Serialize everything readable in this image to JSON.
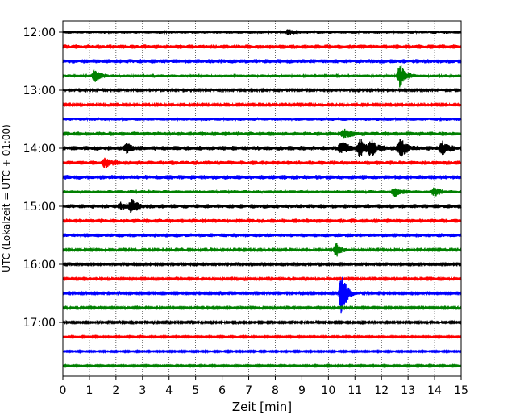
{
  "chart_data": {
    "type": "line",
    "title": "",
    "xlabel": "Zeit  [min]",
    "ylabel": "UTC (Lokalzeit = UTC + 01:00)",
    "xlim": [
      0,
      15
    ],
    "x_ticks": [
      "0",
      "1",
      "2",
      "3",
      "4",
      "5",
      "6",
      "7",
      "8",
      "9",
      "10",
      "11",
      "12",
      "13",
      "14",
      "15"
    ],
    "y_ticks": [
      "12:00",
      "13:00",
      "14:00",
      "15:00",
      "16:00",
      "17:00"
    ],
    "grid": "vertical dotted",
    "trace_colors": [
      "#000000",
      "#ff0000",
      "#0000ff",
      "#008000"
    ],
    "traces": [
      {
        "start": "12:00",
        "color": "#000000",
        "amplitude": 0.22,
        "events": [
          [
            8.5,
            0.35
          ]
        ]
      },
      {
        "start": "12:15",
        "color": "#ff0000",
        "amplitude": 0.3,
        "events": []
      },
      {
        "start": "12:30",
        "color": "#0000ff",
        "amplitude": 0.3,
        "events": []
      },
      {
        "start": "12:45",
        "color": "#008000",
        "amplitude": 0.18,
        "events": [
          [
            1.2,
            1.0
          ],
          [
            12.7,
            1.6
          ]
        ]
      },
      {
        "start": "13:00",
        "color": "#000000",
        "amplitude": 0.12,
        "events": []
      },
      {
        "start": "13:15",
        "color": "#ff0000",
        "amplitude": 0.12,
        "events": []
      },
      {
        "start": "13:30",
        "color": "#0000ff",
        "amplitude": 0.22,
        "events": []
      },
      {
        "start": "13:45",
        "color": "#008000",
        "amplitude": 0.3,
        "events": [
          [
            10.6,
            0.6
          ]
        ]
      },
      {
        "start": "14:00",
        "color": "#000000",
        "amplitude": 0.32,
        "events": [
          [
            2.4,
            0.6
          ],
          [
            10.5,
            0.9
          ],
          [
            11.2,
            1.2
          ],
          [
            11.6,
            1.0
          ],
          [
            12.7,
            1.4
          ],
          [
            14.3,
            0.8
          ]
        ]
      },
      {
        "start": "14:15",
        "color": "#ff0000",
        "amplitude": 0.3,
        "events": [
          [
            1.6,
            0.6
          ]
        ]
      },
      {
        "start": "14:30",
        "color": "#0000ff",
        "amplitude": 0.32,
        "events": []
      },
      {
        "start": "14:45",
        "color": "#008000",
        "amplitude": 0.22,
        "events": [
          [
            12.5,
            0.6
          ],
          [
            14.0,
            0.6
          ]
        ]
      },
      {
        "start": "15:00",
        "color": "#000000",
        "amplitude": 0.3,
        "events": [
          [
            2.2,
            0.5
          ],
          [
            2.6,
            0.9
          ]
        ]
      },
      {
        "start": "15:15",
        "color": "#ff0000",
        "amplitude": 0.3,
        "events": []
      },
      {
        "start": "15:30",
        "color": "#0000ff",
        "amplitude": 0.28,
        "events": []
      },
      {
        "start": "15:45",
        "color": "#008000",
        "amplitude": 0.12,
        "events": [
          [
            10.3,
            1.1
          ]
        ]
      },
      {
        "start": "16:00",
        "color": "#000000",
        "amplitude": 0.1,
        "events": []
      },
      {
        "start": "16:15",
        "color": "#ff0000",
        "amplitude": 0.1,
        "events": []
      },
      {
        "start": "16:30",
        "color": "#0000ff",
        "amplitude": 0.1,
        "events": [
          [
            10.5,
            3.2
          ]
        ]
      },
      {
        "start": "16:45",
        "color": "#008000",
        "amplitude": 0.1,
        "events": []
      },
      {
        "start": "17:00",
        "color": "#000000",
        "amplitude": 0.1,
        "events": []
      },
      {
        "start": "17:15",
        "color": "#ff0000",
        "amplitude": 0.08,
        "events": []
      },
      {
        "start": "17:30",
        "color": "#0000ff",
        "amplitude": 0.08,
        "events": []
      },
      {
        "start": "17:45",
        "color": "#008000",
        "amplitude": 0.08,
        "events": []
      }
    ]
  }
}
